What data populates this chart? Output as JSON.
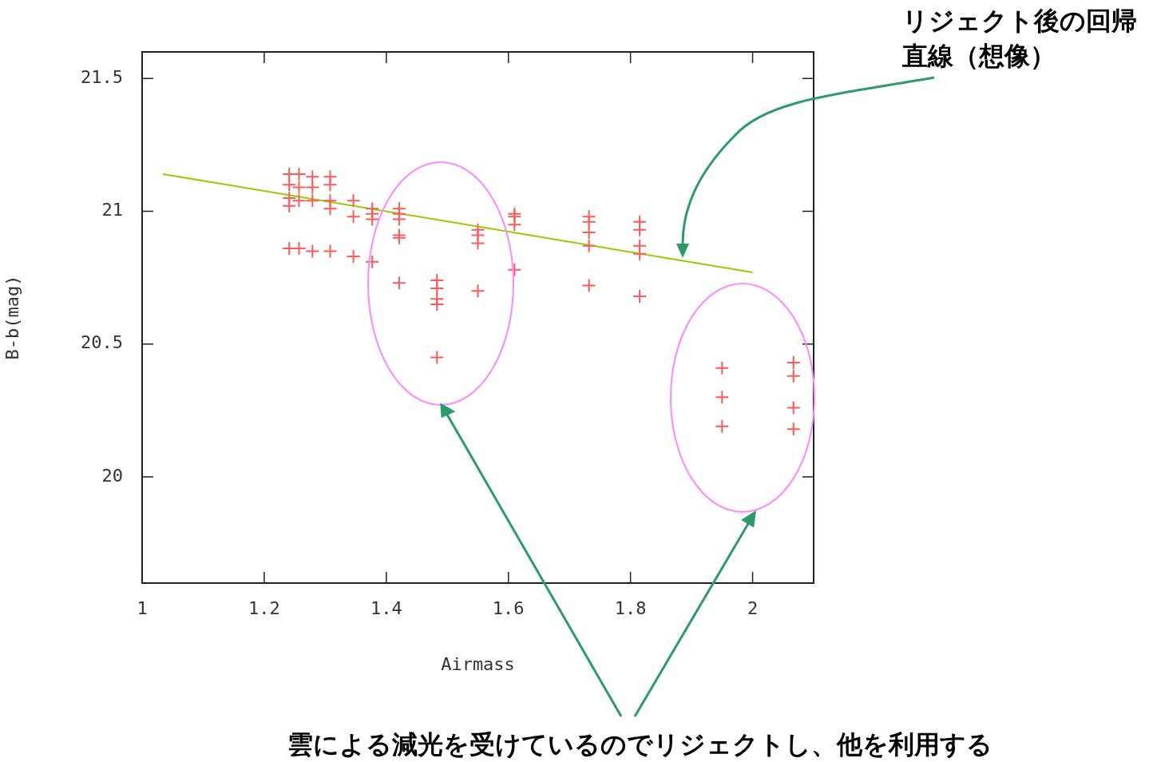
{
  "chart_data": {
    "type": "scatter",
    "xlabel": "Airmass",
    "ylabel": "B-b(mag)",
    "xlim": [
      1,
      2.1
    ],
    "xticks": [
      1,
      1.2,
      1.4,
      1.6,
      1.8,
      2
    ],
    "ylim": [
      19.6,
      21.6
    ],
    "yticks": [
      20,
      20.5,
      21,
      21.5
    ],
    "grid": false,
    "legend": false,
    "series": [
      {
        "marker": "cross",
        "color": "#ff5a5a",
        "x": [
          1.241,
          1.241,
          1.241,
          1.241,
          1.241,
          1.257,
          1.257,
          1.257,
          1.257,
          1.279,
          1.279,
          1.279,
          1.279,
          1.308,
          1.308,
          1.308,
          1.308,
          1.308,
          1.346,
          1.346,
          1.346,
          1.377,
          1.377,
          1.377,
          1.377,
          1.421,
          1.421,
          1.421,
          1.421,
          1.421,
          1.421,
          1.483,
          1.483,
          1.483,
          1.483,
          1.483,
          1.55,
          1.55,
          1.55,
          1.55,
          1.61,
          1.61,
          1.61,
          1.61,
          1.732,
          1.732,
          1.732,
          1.732,
          1.732,
          1.815,
          1.815,
          1.815,
          1.815,
          1.815,
          1.95,
          1.95,
          1.95,
          2.067,
          2.067,
          2.067,
          2.067
        ],
        "values": [
          21.14,
          21.1,
          21.05,
          21.02,
          20.86,
          21.14,
          21.09,
          21.04,
          20.86,
          21.13,
          21.09,
          21.04,
          20.85,
          21.13,
          21.1,
          21.04,
          21.01,
          20.85,
          21.04,
          20.98,
          20.83,
          21.01,
          20.99,
          20.97,
          20.81,
          21.01,
          20.99,
          20.97,
          20.91,
          20.9,
          20.73,
          20.74,
          20.71,
          20.67,
          20.65,
          20.45,
          20.93,
          20.91,
          20.88,
          20.7,
          20.99,
          20.98,
          20.95,
          20.78,
          20.98,
          20.96,
          20.92,
          20.87,
          20.72,
          20.96,
          20.93,
          20.87,
          20.84,
          20.68,
          20.41,
          20.3,
          20.19,
          20.43,
          20.38,
          20.26,
          20.18
        ]
      },
      {
        "type": "line",
        "marker": "none",
        "color": "#99cc00",
        "x": [
          1.034,
          2.0
        ],
        "values": [
          21.14,
          20.77
        ]
      }
    ],
    "annotations": [
      "リジェクト後の回帰直線（想像）",
      "雲による減光を受けているのでリジェクトし、他を利用する"
    ]
  }
}
